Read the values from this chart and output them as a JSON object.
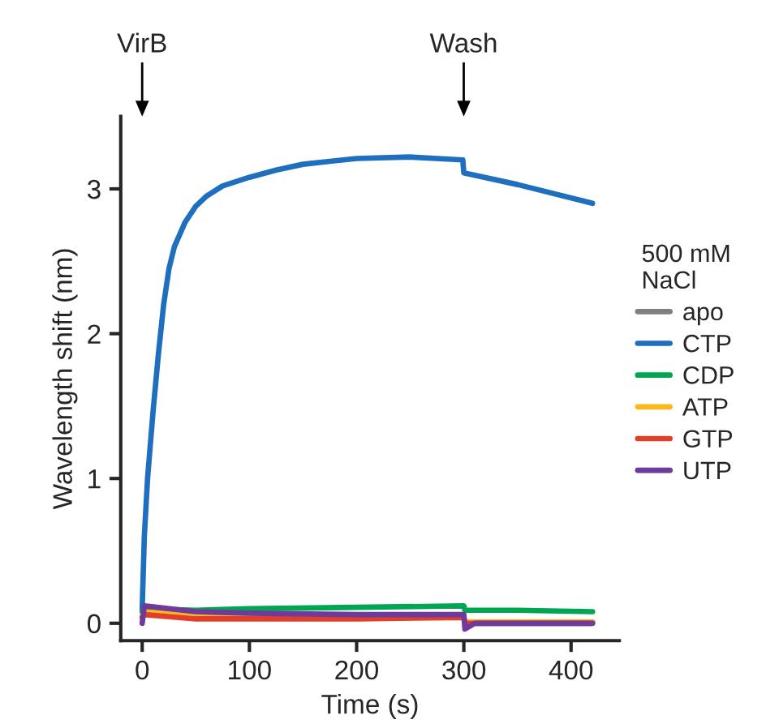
{
  "chart_data": {
    "type": "line",
    "xlabel": "Time (s)",
    "ylabel": "Wavelength shift (nm)",
    "legend_title": "500 mM\nNaCl",
    "legend": "right",
    "grid": false,
    "xlim": [
      -20,
      445
    ],
    "xticks": [
      0,
      100,
      200,
      300,
      400
    ],
    "ylim": [
      -0.12,
      3.5
    ],
    "yticks": [
      0,
      1,
      2,
      3
    ],
    "annotations": [
      "VirB",
      "Wash"
    ],
    "series": [
      {
        "name": "apo",
        "color": "#808080"
      },
      {
        "name": "CTP",
        "color": "#1f6fbf",
        "x": [
          0,
          2,
          5,
          10,
          15,
          20,
          25,
          30,
          40,
          50,
          60,
          75,
          100,
          125,
          150,
          175,
          200,
          250,
          299,
          300,
          350,
          420
        ],
        "values": [
          0.1,
          0.6,
          1.0,
          1.45,
          1.85,
          2.2,
          2.45,
          2.6,
          2.77,
          2.88,
          2.95,
          3.02,
          3.08,
          3.13,
          3.17,
          3.19,
          3.21,
          3.22,
          3.2,
          3.11,
          3.03,
          2.9
        ]
      },
      {
        "name": "CDP",
        "color": "#00a651",
        "x": [
          0,
          2,
          50,
          100,
          200,
          299,
          300,
          301,
          350,
          420
        ],
        "values": [
          0.08,
          0.1,
          0.09,
          0.1,
          0.11,
          0.12,
          0.12,
          0.09,
          0.09,
          0.08
        ]
      },
      {
        "name": "ATP",
        "color": "#fbb81a",
        "x": [
          0,
          2,
          50,
          100,
          200,
          299,
          300,
          301,
          320,
          420
        ],
        "values": [
          0.05,
          0.08,
          0.05,
          0.04,
          0.04,
          0.04,
          0.04,
          0.01,
          0.01,
          0.01
        ]
      },
      {
        "name": "GTP",
        "color": "#e0402b",
        "x": [
          0,
          2,
          50,
          100,
          200,
          299,
          300,
          301,
          320,
          420
        ],
        "values": [
          0.04,
          0.06,
          0.03,
          0.03,
          0.03,
          0.04,
          0.04,
          0.0,
          0.0,
          0.0
        ]
      },
      {
        "name": "UTP",
        "color": "#6e3a9c",
        "x": [
          0,
          2,
          50,
          100,
          200,
          299,
          300,
          301,
          310,
          420
        ],
        "values": [
          0.0,
          0.12,
          0.08,
          0.07,
          0.06,
          0.06,
          0.06,
          -0.04,
          0.0,
          0.0
        ]
      }
    ]
  }
}
